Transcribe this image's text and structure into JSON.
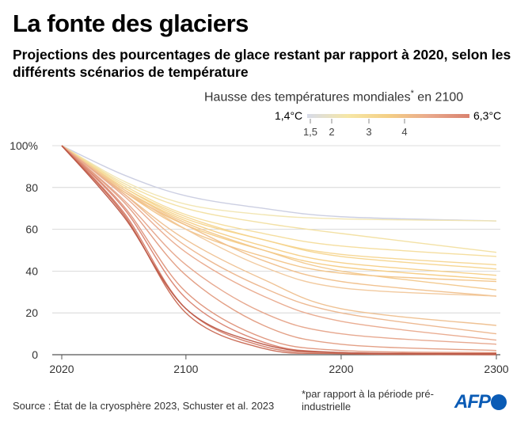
{
  "header": {
    "title": "La fonte des glaciers",
    "subtitle": "Projections des pourcentages de glace restant par rapport à 2020, selon les différents scénarios de température"
  },
  "legend": {
    "title": "Hausse des températures mondiales",
    "title_star": "*",
    "title_suffix": " en 2100",
    "min_label": "1,4°C",
    "max_label": "6,3°C",
    "ticks": [
      "1,5",
      "2",
      "3",
      "4"
    ],
    "gradient_colors": [
      "#d7dbe9",
      "#f6e7a6",
      "#f4cf86",
      "#e9a98c",
      "#d9826f"
    ]
  },
  "chart_data": {
    "type": "line",
    "x_ticks": [
      "2020",
      "2100",
      "2200",
      "2300"
    ],
    "y_ticks": [
      "0",
      "20",
      "40",
      "60",
      "80",
      "100%"
    ],
    "xlim": [
      2020,
      2300
    ],
    "ylim": [
      0,
      100
    ],
    "legend_position": "top-right",
    "grid": "horizontal",
    "series": [
      {
        "color": "#c9cce0",
        "values": [
          [
            2020,
            100
          ],
          [
            2060,
            86
          ],
          [
            2100,
            76
          ],
          [
            2150,
            70
          ],
          [
            2200,
            66
          ],
          [
            2300,
            64
          ]
        ]
      },
      {
        "color": "#f1e5b0",
        "values": [
          [
            2020,
            100
          ],
          [
            2060,
            83
          ],
          [
            2100,
            72
          ],
          [
            2150,
            67
          ],
          [
            2200,
            65
          ],
          [
            2300,
            64
          ]
        ]
      },
      {
        "color": "#f2dfa0",
        "values": [
          [
            2020,
            100
          ],
          [
            2060,
            82
          ],
          [
            2100,
            70
          ],
          [
            2150,
            63
          ],
          [
            2200,
            58
          ],
          [
            2300,
            49
          ]
        ]
      },
      {
        "color": "#f4dc9a",
        "values": [
          [
            2020,
            100
          ],
          [
            2060,
            81
          ],
          [
            2100,
            67
          ],
          [
            2150,
            58
          ],
          [
            2200,
            52
          ],
          [
            2300,
            47
          ]
        ]
      },
      {
        "color": "#f5d58f",
        "values": [
          [
            2020,
            100
          ],
          [
            2060,
            80
          ],
          [
            2100,
            66
          ],
          [
            2150,
            55
          ],
          [
            2200,
            48
          ],
          [
            2300,
            43
          ]
        ]
      },
      {
        "color": "#f6d48c",
        "values": [
          [
            2020,
            100
          ],
          [
            2060,
            80
          ],
          [
            2100,
            65
          ],
          [
            2150,
            55
          ],
          [
            2200,
            47
          ],
          [
            2300,
            41
          ]
        ]
      },
      {
        "color": "#f6cf86",
        "values": [
          [
            2020,
            100
          ],
          [
            2060,
            79
          ],
          [
            2100,
            64
          ],
          [
            2150,
            52
          ],
          [
            2200,
            44
          ],
          [
            2300,
            38
          ]
        ]
      },
      {
        "color": "#f5cc84",
        "values": [
          [
            2020,
            100
          ],
          [
            2060,
            78
          ],
          [
            2100,
            62
          ],
          [
            2150,
            50
          ],
          [
            2200,
            42
          ],
          [
            2300,
            36
          ]
        ]
      },
      {
        "color": "#f2c488",
        "values": [
          [
            2020,
            100
          ],
          [
            2060,
            78
          ],
          [
            2100,
            60
          ],
          [
            2150,
            47
          ],
          [
            2200,
            39
          ],
          [
            2300,
            35
          ]
        ]
      },
      {
        "color": "#f2c78a",
        "values": [
          [
            2020,
            100
          ],
          [
            2060,
            79
          ],
          [
            2100,
            63
          ],
          [
            2150,
            50
          ],
          [
            2200,
            40
          ],
          [
            2300,
            31
          ]
        ]
      },
      {
        "color": "#f0bf8a",
        "values": [
          [
            2020,
            100
          ],
          [
            2060,
            78
          ],
          [
            2100,
            62
          ],
          [
            2150,
            45
          ],
          [
            2200,
            35
          ],
          [
            2300,
            28
          ]
        ]
      },
      {
        "color": "#f1c79a",
        "values": [
          [
            2020,
            100
          ],
          [
            2060,
            79
          ],
          [
            2100,
            60
          ],
          [
            2150,
            42
          ],
          [
            2200,
            32
          ],
          [
            2300,
            28
          ]
        ]
      },
      {
        "color": "#eebf8e",
        "values": [
          [
            2020,
            100
          ],
          [
            2060,
            77
          ],
          [
            2100,
            55
          ],
          [
            2150,
            36
          ],
          [
            2200,
            22
          ],
          [
            2300,
            14
          ]
        ]
      },
      {
        "color": "#ecb58c",
        "values": [
          [
            2020,
            100
          ],
          [
            2060,
            77
          ],
          [
            2100,
            52
          ],
          [
            2150,
            32
          ],
          [
            2200,
            20
          ],
          [
            2300,
            10
          ]
        ]
      },
      {
        "color": "#e9a98c",
        "values": [
          [
            2020,
            100
          ],
          [
            2060,
            76
          ],
          [
            2100,
            49
          ],
          [
            2150,
            28
          ],
          [
            2200,
            16
          ],
          [
            2300,
            7
          ]
        ]
      },
      {
        "color": "#e6a48a",
        "values": [
          [
            2020,
            100
          ],
          [
            2060,
            74
          ],
          [
            2100,
            43
          ],
          [
            2150,
            20
          ],
          [
            2200,
            10
          ],
          [
            2300,
            5
          ]
        ]
      },
      {
        "color": "#e19b80",
        "values": [
          [
            2020,
            100
          ],
          [
            2060,
            73
          ],
          [
            2100,
            38
          ],
          [
            2150,
            14
          ],
          [
            2200,
            5
          ],
          [
            2300,
            2
          ]
        ]
      },
      {
        "color": "#de9178",
        "values": [
          [
            2020,
            100
          ],
          [
            2060,
            71
          ],
          [
            2100,
            30
          ],
          [
            2150,
            8
          ],
          [
            2200,
            2
          ],
          [
            2300,
            1
          ]
        ]
      },
      {
        "color": "#d9826f",
        "values": [
          [
            2020,
            100
          ],
          [
            2060,
            70
          ],
          [
            2100,
            27
          ],
          [
            2150,
            6
          ],
          [
            2200,
            1
          ],
          [
            2300,
            0.5
          ]
        ]
      },
      {
        "color": "#d47a66",
        "values": [
          [
            2020,
            100
          ],
          [
            2060,
            68
          ],
          [
            2100,
            22
          ],
          [
            2150,
            4
          ],
          [
            2200,
            1
          ],
          [
            2300,
            0.5
          ]
        ]
      },
      {
        "color": "#c86751",
        "values": [
          [
            2020,
            100
          ],
          [
            2060,
            67
          ],
          [
            2100,
            20
          ],
          [
            2150,
            3
          ],
          [
            2200,
            0.5
          ],
          [
            2300,
            0
          ]
        ]
      },
      {
        "color": "#b95443",
        "values": [
          [
            2020,
            100
          ],
          [
            2060,
            66
          ],
          [
            2100,
            22
          ],
          [
            2150,
            5
          ],
          [
            2200,
            1
          ],
          [
            2300,
            0.5
          ]
        ]
      }
    ]
  },
  "footer": {
    "source": "Source : État de la cryosphère 2023, Schuster et al. 2023",
    "note": "*par rapport à la période pré-industrielle",
    "logo_text": "AFP"
  }
}
